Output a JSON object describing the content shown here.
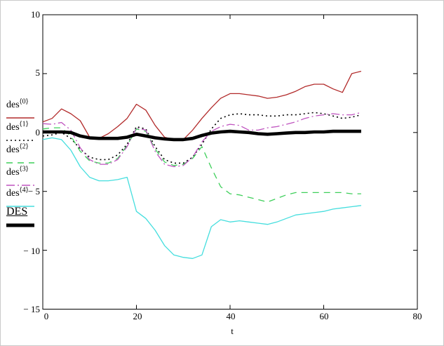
{
  "figure": {
    "xlabel": "t",
    "x_tick_labels": [
      "0",
      "20",
      "40",
      "60",
      "80"
    ],
    "y_tick_labels": [
      "10",
      "5",
      "0",
      "− 5",
      "− 10",
      "− 15"
    ]
  },
  "legend": {
    "items": [
      {
        "base": "des",
        "sup": "⟨0⟩"
      },
      {
        "base": "des",
        "sup": "⟨1⟩"
      },
      {
        "base": "des",
        "sup": "⟨2⟩"
      },
      {
        "base": "des",
        "sup": "⟨3⟩"
      },
      {
        "base": "des",
        "sup": "⟨4⟩"
      },
      {
        "base": "DES",
        "sup": ""
      }
    ]
  },
  "chart_data": {
    "type": "line",
    "title": "",
    "xlabel": "t",
    "ylabel": "",
    "xlim": [
      0,
      80
    ],
    "ylim": [
      -15,
      10
    ],
    "x_ticks": [
      0,
      20,
      40,
      60,
      80
    ],
    "y_ticks": [
      10,
      5,
      0,
      -5,
      -10,
      -15
    ],
    "grid": false,
    "legend_position": "left",
    "x": [
      0,
      2,
      4,
      6,
      8,
      10,
      12,
      14,
      16,
      18,
      20,
      22,
      24,
      26,
      28,
      30,
      32,
      34,
      36,
      38,
      40,
      42,
      44,
      46,
      48,
      50,
      52,
      54,
      56,
      58,
      60,
      62,
      64,
      66,
      68
    ],
    "series": [
      {
        "name": "des<0>",
        "color": "#b22a2a",
        "style": "solid",
        "width": 1.3,
        "values": [
          0.9,
          1.2,
          2.0,
          1.6,
          1.0,
          -0.4,
          -0.5,
          -0.1,
          0.5,
          1.2,
          2.4,
          1.9,
          0.6,
          -0.4,
          -0.6,
          -0.6,
          0.2,
          1.2,
          2.1,
          2.9,
          3.3,
          3.3,
          3.2,
          3.1,
          2.9,
          3.0,
          3.2,
          3.5,
          3.9,
          4.1,
          4.1,
          3.7,
          3.4,
          5.0,
          5.2
        ]
      },
      {
        "name": "des<1>",
        "color": "#000000",
        "style": "dotted",
        "width": 1.6,
        "values": [
          -0.3,
          -0.2,
          0.0,
          -0.5,
          -1.4,
          -2.1,
          -2.3,
          -2.3,
          -1.9,
          -1.0,
          0.5,
          0.3,
          -1.2,
          -2.3,
          -2.6,
          -2.6,
          -2.1,
          -1.0,
          0.3,
          1.2,
          1.5,
          1.6,
          1.5,
          1.5,
          1.4,
          1.4,
          1.5,
          1.5,
          1.6,
          1.7,
          1.6,
          1.4,
          1.2,
          1.3,
          1.5
        ]
      },
      {
        "name": "des<2>",
        "color": "#3ecf5a",
        "style": "dashed",
        "width": 1.3,
        "values": [
          0.3,
          0.4,
          0.4,
          -0.3,
          -1.6,
          -2.4,
          -2.6,
          -2.6,
          -2.2,
          -1.1,
          0.3,
          0.1,
          -1.4,
          -2.5,
          -2.8,
          -2.7,
          -2.2,
          -1.2,
          -3.0,
          -4.6,
          -5.2,
          -5.3,
          -5.5,
          -5.7,
          -5.9,
          -5.6,
          -5.3,
          -5.1,
          -5.1,
          -5.1,
          -5.1,
          -5.1,
          -5.1,
          -5.2,
          -5.2
        ]
      },
      {
        "name": "des<3>",
        "color": "#bf53bf",
        "style": "dashdot",
        "width": 1.3,
        "values": [
          0.75,
          0.7,
          0.85,
          0.2,
          -1.3,
          -2.3,
          -2.7,
          -2.7,
          -2.3,
          -1.2,
          0.4,
          0.2,
          -1.6,
          -2.7,
          -2.9,
          -2.8,
          -2.1,
          -0.8,
          0.1,
          0.5,
          0.7,
          0.6,
          0.2,
          0.2,
          0.4,
          0.5,
          0.7,
          0.9,
          1.2,
          1.4,
          1.5,
          1.6,
          1.5,
          1.5,
          1.7
        ]
      },
      {
        "name": "des<4>",
        "color": "#45dede",
        "style": "solid",
        "width": 1.3,
        "values": [
          -0.6,
          -0.45,
          -0.6,
          -1.5,
          -2.9,
          -3.8,
          -4.1,
          -4.1,
          -4.0,
          -3.8,
          -6.7,
          -7.3,
          -8.3,
          -9.6,
          -10.4,
          -10.6,
          -10.7,
          -10.4,
          -8.0,
          -7.4,
          -7.6,
          -7.5,
          -7.6,
          -7.7,
          -7.8,
          -7.6,
          -7.3,
          -7.0,
          -6.9,
          -6.8,
          -6.7,
          -6.5,
          -6.4,
          -6.3,
          -6.2
        ]
      },
      {
        "name": "DES",
        "color": "#000000",
        "style": "solid",
        "width": 4.6,
        "values": [
          0.05,
          0.05,
          0.05,
          0.0,
          -0.3,
          -0.45,
          -0.5,
          -0.5,
          -0.5,
          -0.4,
          -0.15,
          -0.3,
          -0.45,
          -0.55,
          -0.6,
          -0.6,
          -0.5,
          -0.25,
          -0.05,
          0.05,
          0.1,
          0.05,
          0.0,
          -0.1,
          -0.15,
          -0.1,
          -0.05,
          0.0,
          0.0,
          0.05,
          0.05,
          0.1,
          0.1,
          0.1,
          0.1
        ]
      }
    ]
  }
}
